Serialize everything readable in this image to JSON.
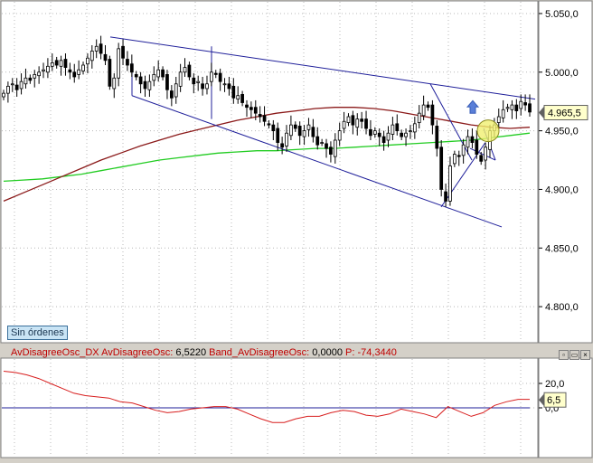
{
  "status_badge": "Sin órdenes",
  "indicator_legend": {
    "name": "AvDisagreeOsc_DX",
    "osc_label": "AvDisagreeOsc:",
    "osc_value": "6,5220",
    "band_label": "Band_AvDisagreeOsc:",
    "band_value": "0,0000",
    "p_label": "P:",
    "p_value": "-74,3440"
  },
  "colors": {
    "up_candle": "#ffffff",
    "down_candle": "#000000",
    "trendlines": "#1f1f9a",
    "ma_slow": "#8b1a1a",
    "ma_long": "#22cc22",
    "oscillator": "#d81e1e",
    "zero_band": "#1f1f9a",
    "highlight_circle": "#f0f070",
    "arrow": "#5a7fd8"
  },
  "chart_data": [
    {
      "type": "candlestick",
      "title": "",
      "ylim": [
        4770,
        5060
      ],
      "y_ticks": [
        "5.050,0",
        "5.000,0",
        "4.950,0",
        "4.900,0",
        "4.850,0",
        "4.800,0"
      ],
      "y_tick_values": [
        5050,
        5000,
        4950,
        4900,
        4850,
        4800
      ],
      "last_price_label": "4.965,5",
      "last_price": 4965.5,
      "grid": true,
      "close_series": [
        4982,
        4988,
        4990,
        4985,
        4992,
        4995,
        4993,
        4998,
        5000,
        5002,
        5005,
        5008,
        5006,
        5010,
        5004,
        5000,
        4996,
        5002,
        5006,
        5012,
        5018,
        5022,
        5016,
        5010,
        4988,
        4995,
        5020,
        5012,
        5006,
        5000,
        4996,
        4990,
        4986,
        4992,
        4998,
        5002,
        4996,
        4985,
        4978,
        4990,
        5000,
        5004,
        4996,
        4990,
        4992,
        4986,
        4990,
        5000,
        4998,
        4992,
        4990,
        4986,
        4978,
        4980,
        4974,
        4970,
        4968,
        4965,
        4962,
        4958,
        4955,
        4950,
        4940,
        4936,
        4948,
        4955,
        4952,
        4946,
        4950,
        4955,
        4945,
        4938,
        4940,
        4935,
        4930,
        4942,
        4950,
        4958,
        4962,
        4955,
        4960,
        4958,
        4952,
        4946,
        4950,
        4945,
        4940,
        4948,
        4955,
        4950,
        4945,
        4948,
        4950,
        4956,
        4965,
        4972,
        4970,
        4955,
        4935,
        4900,
        4890,
        4920,
        4930,
        4928,
        4938,
        4945,
        4940,
        4930,
        4924,
        4936,
        4950,
        4955,
        4962,
        4968,
        4970,
        4972,
        4967,
        4975,
        4972,
        4966
      ],
      "ma_slow": [
        4890,
        4897,
        4904,
        4911,
        4918,
        4925,
        4931,
        4937,
        4942,
        4947,
        4951,
        4955,
        4959,
        4962,
        4965,
        4967,
        4969,
        4970,
        4970,
        4969,
        4967,
        4964,
        4961,
        4958,
        4955,
        4953,
        4952,
        4953
      ],
      "ma_long": [
        4907,
        4908,
        4909,
        4911,
        4913,
        4916,
        4919,
        4922,
        4925,
        4927,
        4929,
        4931,
        4932,
        4933,
        4933,
        4934,
        4935,
        4935,
        4936,
        4937,
        4938,
        4939,
        4940,
        4941,
        4942,
        4944,
        4946,
        4948
      ],
      "highlight_price": 4950,
      "arrow_price": 4968
    },
    {
      "type": "line",
      "title": "",
      "ylim": [
        -40,
        40
      ],
      "y_ticks": [
        "20,0",
        "0,0"
      ],
      "y_tick_values": [
        20,
        0
      ],
      "last_value_label": "6,5",
      "last_value": 6.5,
      "series": [
        {
          "values": [
            30,
            29,
            27,
            24,
            20,
            16,
            12,
            10,
            9,
            8,
            5,
            4,
            1,
            -2,
            -4,
            -3,
            -1,
            0,
            1,
            1,
            -1,
            -5,
            -9,
            -12,
            -12,
            -9,
            -7,
            -7,
            -4,
            -2,
            -3,
            -6,
            -7,
            -5,
            -1,
            -3,
            -5,
            -8,
            1,
            -3,
            -7,
            -4,
            2,
            5,
            7,
            7
          ]
        }
      ],
      "band": 0
    }
  ]
}
